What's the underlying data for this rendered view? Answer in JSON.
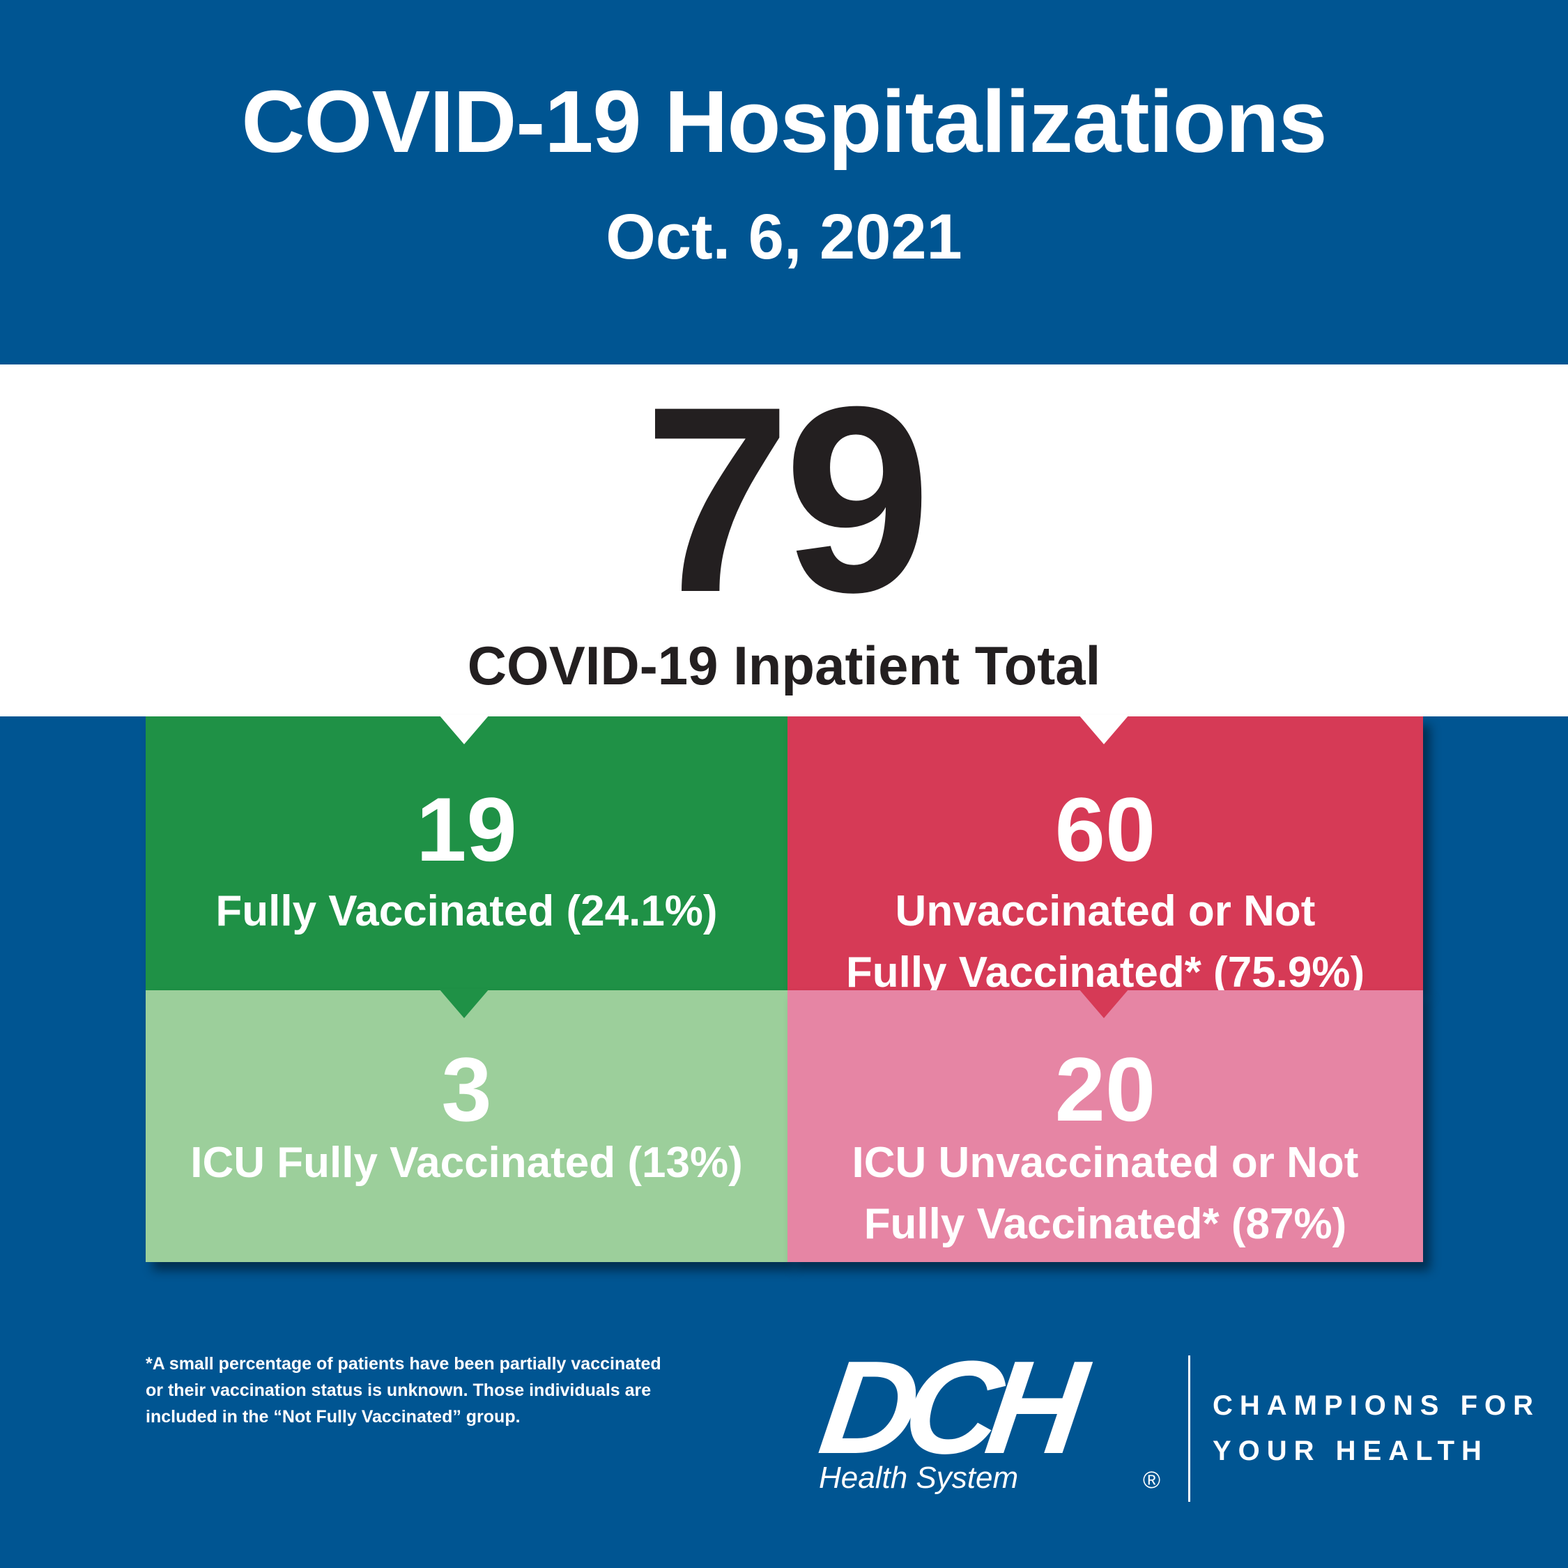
{
  "header": {
    "title": "COVID-19 Hospitalizations",
    "date": "Oct. 6, 2021"
  },
  "total": {
    "value": "79",
    "label": "COVID-19 Inpatient Total"
  },
  "cells": {
    "fully_vaccinated": {
      "value": "19",
      "label": "Fully Vaccinated (24.1%)"
    },
    "unvaccinated": {
      "value": "60",
      "label_line1": "Unvaccinated or Not",
      "label_line2": "Fully Vaccinated* (75.9%)"
    },
    "icu_fully_vaccinated": {
      "value": "3",
      "label": "ICU Fully Vaccinated (13%)"
    },
    "icu_unvaccinated": {
      "value": "20",
      "label_line1": "ICU Unvaccinated or Not",
      "label_line2": "Fully Vaccinated* (87%)"
    }
  },
  "footnote": {
    "line1": "*A small percentage of patients have been partially vaccinated",
    "line2": "or their vaccination status is unknown. Those individuals are",
    "line3": "included in the “Not Fully Vaccinated” group."
  },
  "brand": {
    "logo_text": "DCH",
    "logo_subtext": "Health System",
    "registered": "®",
    "tagline_line1": "CHAMPIONS FOR",
    "tagline_line2": "YOUR HEALTH"
  },
  "colors": {
    "background": "#005592",
    "green_dark": "#1f9146",
    "green_light": "#9ccf9b",
    "red_dark": "#d63a56",
    "pink_light": "#e685a4"
  }
}
